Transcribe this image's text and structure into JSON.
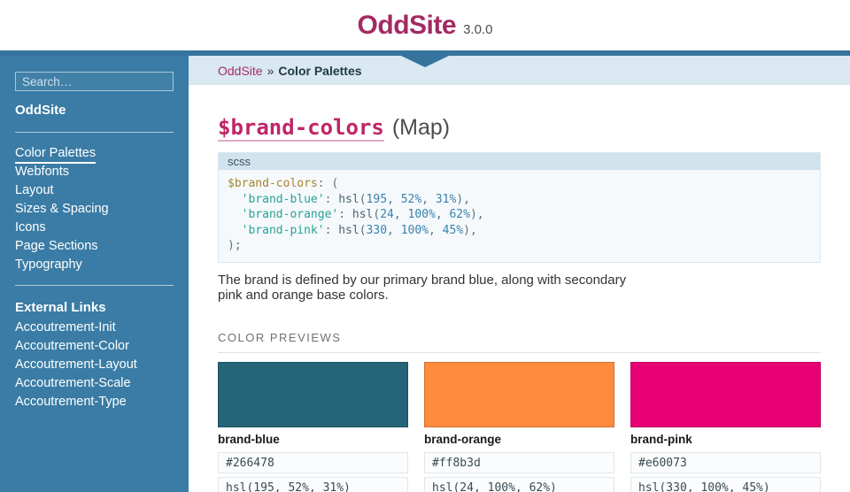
{
  "header": {
    "title": "OddSite",
    "version": "3.0.0"
  },
  "sidebar": {
    "search_placeholder": "Search…",
    "home_label": "OddSite",
    "nav_items": [
      "Color Palettes",
      "Webfonts",
      "Layout",
      "Sizes & Spacing",
      "Icons",
      "Page Sections",
      "Typography"
    ],
    "external_header": "External Links",
    "external_links": [
      "Accoutrement-Init",
      "Accoutrement-Color",
      "Accoutrement-Layout",
      "Accoutrement-Scale",
      "Accoutrement-Type"
    ]
  },
  "breadcrumb": {
    "home": "OddSite",
    "separator": "»",
    "current": "Color Palettes"
  },
  "main": {
    "heading_code": "$brand-colors",
    "heading_suffix": "(Map)",
    "code": {
      "language_label": "scss",
      "lines": [
        [
          "$brand-colors",
          ": ("
        ],
        [
          "  ",
          "'brand-blue'",
          ": ",
          "hsl",
          "(",
          "195",
          ", ",
          "52%",
          ", ",
          "31%",
          "),"
        ],
        [
          "  ",
          "'brand-orange'",
          ": ",
          "hsl",
          "(",
          "24",
          ", ",
          "100%",
          ", ",
          "62%",
          "),"
        ],
        [
          "  ",
          "'brand-pink'",
          ": ",
          "hsl",
          "(",
          "330",
          ", ",
          "100%",
          ", ",
          "45%",
          "),"
        ],
        [
          ");"
        ]
      ]
    },
    "description": "The brand is defined by our primary brand blue, along with secondary pink and orange base colors.",
    "previews_header": "COLOR PREVIEWS",
    "colors": [
      {
        "name": "brand-blue",
        "hex": "#266478",
        "hsl": "hsl(195, 52%, 31%)"
      },
      {
        "name": "brand-orange",
        "hex": "#ff8b3d",
        "hsl": "hsl(24, 100%, 62%)"
      },
      {
        "name": "brand-pink",
        "hex": "#e60073",
        "hsl": "hsl(330, 100%, 45%)"
      }
    ]
  },
  "theme": {
    "brand_magenta": "#a32a63",
    "sidebar_blue": "#3a7ca5",
    "border_blue": "#36749d",
    "breadcrumb_bg": "#d9e8f1"
  }
}
